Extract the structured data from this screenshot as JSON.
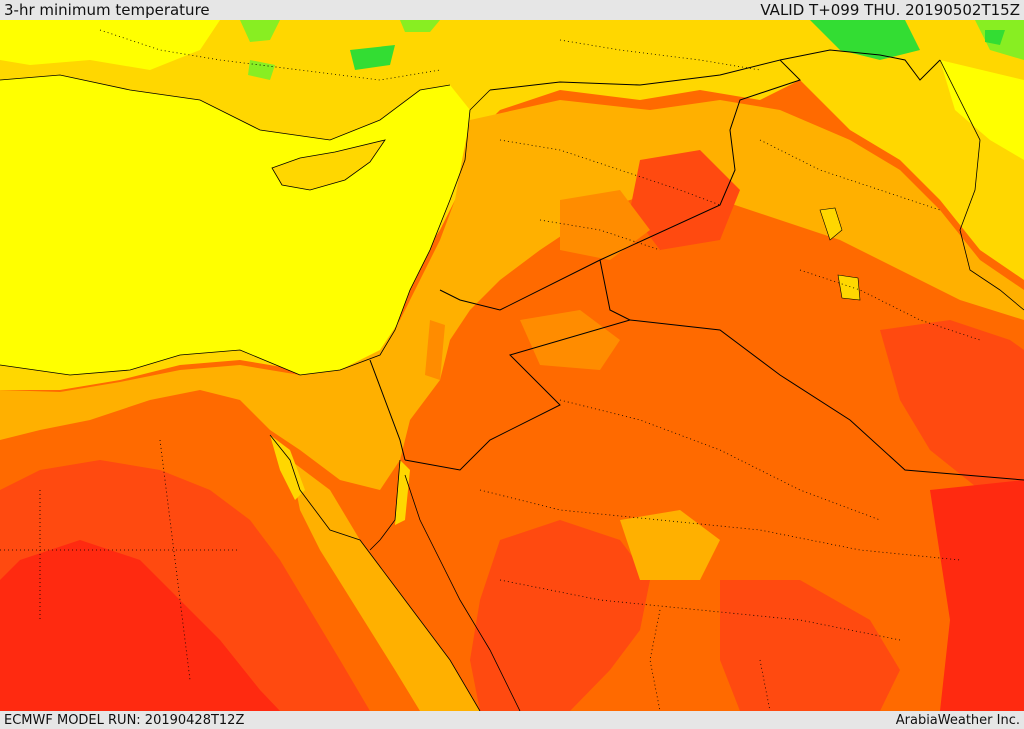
{
  "header": {
    "title": "3-hr minimum temperature",
    "valid": "VALID T+099 THU. 20190502T15Z"
  },
  "footer": {
    "model_run": "ECMWF MODEL RUN: 20190428T12Z",
    "credit": "ArabiaWeather Inc."
  },
  "map": {
    "field": "3-hr minimum temperature",
    "colors": {
      "cool_green": "#33dd33",
      "light_green": "#88ee22",
      "yellow": "#ffff00",
      "gold": "#ffd700",
      "light_orange": "#ffb000",
      "orange": "#ff8c00",
      "dark_orange": "#ff6a00",
      "red_orange": "#ff4a10",
      "red": "#ff2a10"
    }
  }
}
